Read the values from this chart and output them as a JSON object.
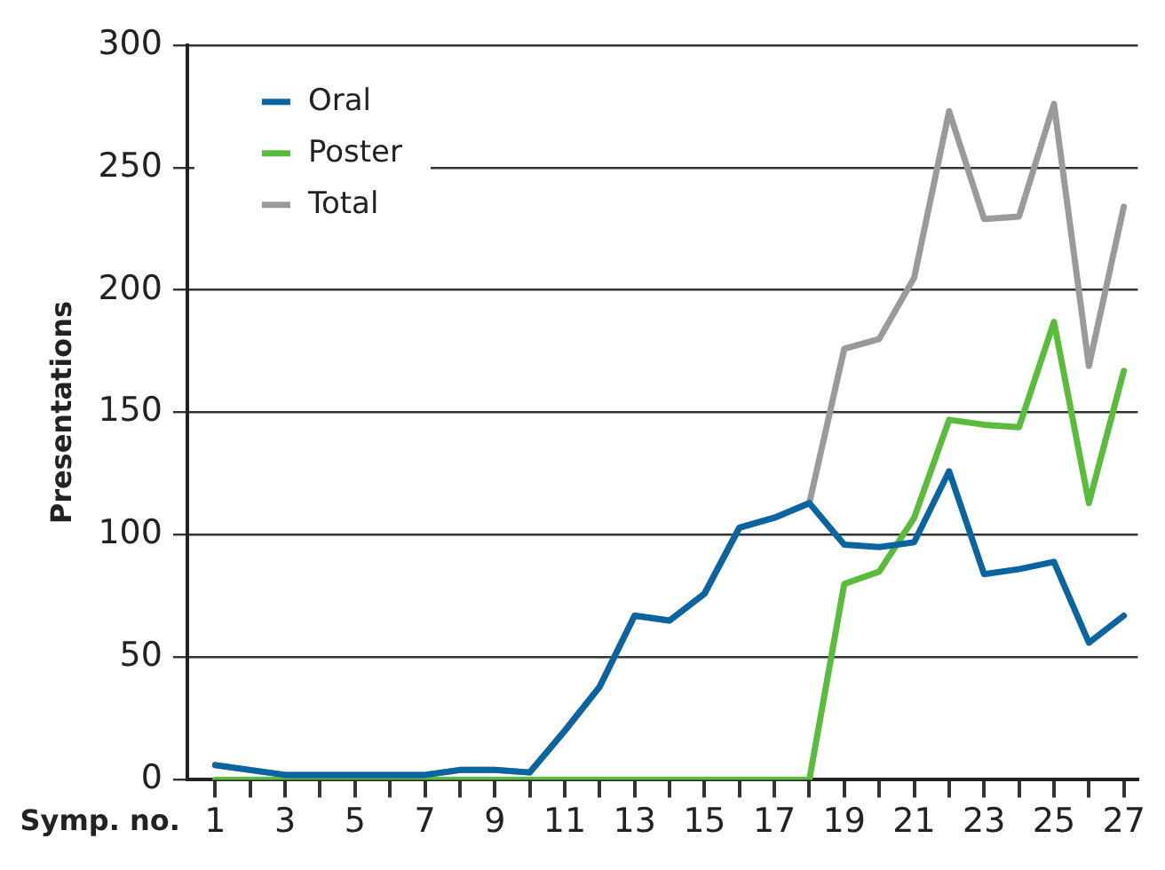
{
  "chart_data": {
    "type": "line",
    "xlabel": "Symp. no.",
    "ylabel": "Presentations",
    "x": [
      1,
      2,
      3,
      4,
      5,
      6,
      7,
      8,
      9,
      10,
      11,
      12,
      13,
      14,
      15,
      16,
      17,
      18,
      19,
      20,
      21,
      22,
      23,
      24,
      25,
      26,
      27
    ],
    "series": [
      {
        "name": "Oral",
        "color": "#0a64a0",
        "values": [
          6,
          4,
          2,
          2,
          2,
          2,
          2,
          4,
          4,
          3,
          20,
          38,
          67,
          65,
          76,
          103,
          107,
          113,
          96,
          95,
          97,
          126,
          84,
          86,
          89,
          56,
          67
        ]
      },
      {
        "name": "Poster",
        "color": "#5bbb3c",
        "values": [
          0,
          0,
          0,
          0,
          0,
          0,
          0,
          0,
          0,
          0,
          0,
          0,
          0,
          0,
          0,
          0,
          0,
          0,
          80,
          85,
          107,
          147,
          145,
          144,
          187,
          113,
          167
        ]
      },
      {
        "name": "Total",
        "color": "#9a9a9c",
        "values": [
          6,
          4,
          2,
          2,
          2,
          2,
          2,
          4,
          4,
          3,
          20,
          38,
          67,
          65,
          76,
          103,
          107,
          113,
          176,
          180,
          205,
          273,
          229,
          230,
          276,
          169,
          234
        ]
      }
    ],
    "xlim": [
      0.2,
      27.4
    ],
    "xticks": [
      1,
      {
        "value": 2,
        "label": null
      },
      3,
      {
        "value": 4,
        "label": null
      },
      5,
      {
        "value": 6,
        "label": null
      },
      7,
      {
        "value": 8,
        "label": null
      },
      9,
      {
        "value": 10,
        "label": null
      },
      11,
      {
        "value": 12,
        "label": null
      },
      13,
      {
        "value": 14,
        "label": null
      },
      15,
      {
        "value": 16,
        "label": null
      },
      17,
      {
        "value": 18,
        "label": null
      },
      19,
      {
        "value": 20,
        "label": null
      },
      21,
      {
        "value": 22,
        "label": null
      },
      23,
      {
        "value": 24,
        "label": null
      },
      25,
      {
        "value": 26,
        "label": null
      },
      27
    ],
    "ylim": [
      0,
      300
    ],
    "yticks": [
      0,
      50,
      100,
      150,
      200,
      250,
      300
    ],
    "grid": "y",
    "legend": "top left",
    "marker": "none",
    "line_style": "solid"
  }
}
